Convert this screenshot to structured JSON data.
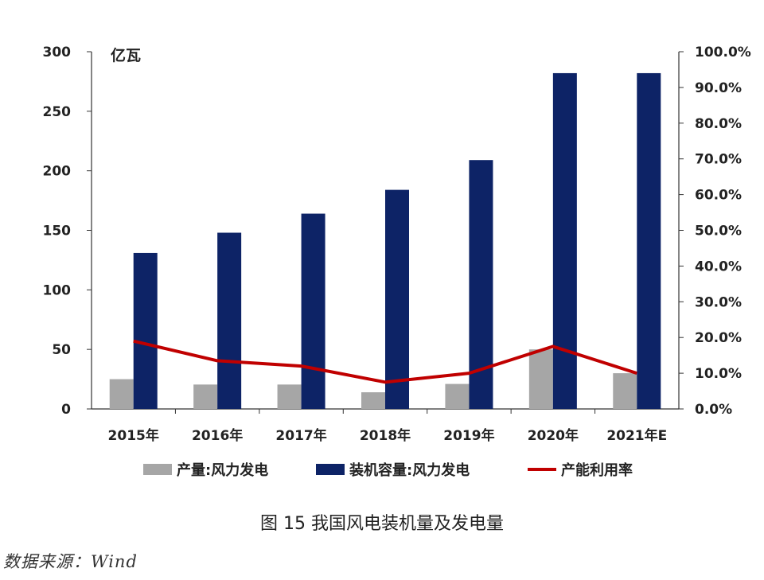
{
  "chart_data": {
    "type": "bar",
    "unit_left": "亿瓦",
    "categories": [
      "2015年",
      "2016年",
      "2017年",
      "2018年",
      "2019年",
      "2020年",
      "2021年E"
    ],
    "series": [
      {
        "name": "产量:风力发电",
        "kind": "bar",
        "axis": "left",
        "color": "#a6a6a6",
        "values": [
          25,
          20.5,
          20.5,
          14,
          21,
          50,
          30
        ]
      },
      {
        "name": "装机容量:风力发电",
        "kind": "bar",
        "axis": "left",
        "color": "#0d2366",
        "values": [
          131,
          148,
          164,
          184,
          209,
          282,
          282
        ]
      },
      {
        "name": "产能利用率",
        "kind": "line",
        "axis": "right",
        "color": "#c00000",
        "values": [
          0.19,
          0.135,
          0.12,
          0.075,
          0.1,
          0.175,
          0.1
        ]
      }
    ],
    "ylim_left": [
      0,
      300
    ],
    "yticks_left": [
      "0",
      "50",
      "100",
      "150",
      "200",
      "250",
      "300"
    ],
    "ylim_right": [
      0,
      1.0
    ],
    "yticks_right": [
      "0.0%",
      "10.0%",
      "20.0%",
      "30.0%",
      "40.0%",
      "50.0%",
      "60.0%",
      "70.0%",
      "80.0%",
      "90.0%",
      "100.0%"
    ],
    "grid": false,
    "legend_position": "bottom"
  },
  "caption": "图 15  我国风电装机量及发电量",
  "source": "数据来源：Wind"
}
